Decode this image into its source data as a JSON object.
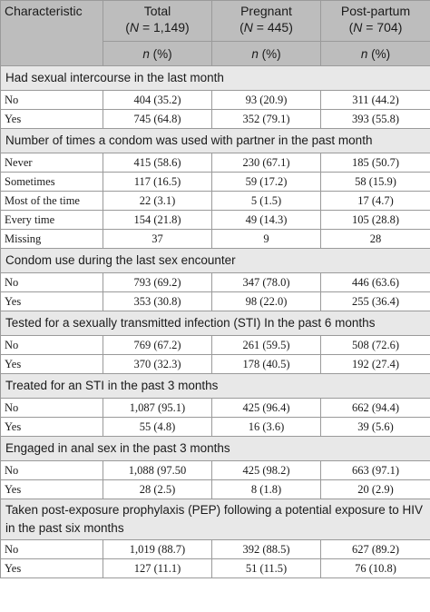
{
  "header": {
    "characteristic": "Characteristic",
    "columns": [
      {
        "title": "Total",
        "n_label": "N",
        "n_value": "= 1,149)"
      },
      {
        "title": "Pregnant",
        "n_label": "N",
        "n_value": "= 445)"
      },
      {
        "title": "Post-partum",
        "n_label": "N",
        "n_value": "= 704)"
      }
    ],
    "unit_n": "n",
    "unit_pct": " (%)"
  },
  "sections": [
    {
      "title": "Had sexual intercourse in the last month",
      "rows": [
        {
          "label": "No",
          "values": [
            "404 (35.2)",
            "93 (20.9)",
            "311 (44.2)"
          ]
        },
        {
          "label": "Yes",
          "values": [
            "745 (64.8)",
            "352 (79.1)",
            "393 (55.8)"
          ]
        }
      ]
    },
    {
      "title": "Number of times a condom was used with partner in the past month",
      "rows": [
        {
          "label": "Never",
          "values": [
            "415 (58.6)",
            "230 (67.1)",
            "185 (50.7)"
          ]
        },
        {
          "label": "Sometimes",
          "values": [
            "117 (16.5)",
            "59 (17.2)",
            "58 (15.9)"
          ]
        },
        {
          "label": "Most of the time",
          "values": [
            "22 (3.1)",
            "5 (1.5)",
            "17 (4.7)"
          ]
        },
        {
          "label": "Every time",
          "values": [
            "154 (21.8)",
            "49 (14.3)",
            "105 (28.8)"
          ]
        },
        {
          "label": "Missing",
          "values": [
            "37",
            "9",
            "28"
          ]
        }
      ]
    },
    {
      "title": "Condom use during the last sex encounter",
      "rows": [
        {
          "label": "No",
          "values": [
            "793 (69.2)",
            "347 (78.0)",
            "446 (63.6)"
          ]
        },
        {
          "label": "Yes",
          "values": [
            "353 (30.8)",
            "98 (22.0)",
            "255 (36.4)"
          ]
        }
      ]
    },
    {
      "title": "Tested for a sexually transmitted infection (STI) In the past 6 months",
      "rows": [
        {
          "label": "No",
          "values": [
            "769 (67.2)",
            "261 (59.5)",
            "508 (72.6)"
          ]
        },
        {
          "label": "Yes",
          "values": [
            "370 (32.3)",
            "178 (40.5)",
            "192 (27.4)"
          ]
        }
      ]
    },
    {
      "title": "Treated for an STI in the past 3 months",
      "rows": [
        {
          "label": "No",
          "values": [
            "1,087 (95.1)",
            "425 (96.4)",
            "662 (94.4)"
          ]
        },
        {
          "label": "Yes",
          "values": [
            "55 (4.8)",
            "16 (3.6)",
            "39 (5.6)"
          ]
        }
      ]
    },
    {
      "title": "Engaged in anal sex in the past 3 months",
      "rows": [
        {
          "label": "No",
          "values": [
            "1,088 (97.50",
            "425 (98.2)",
            "663 (97.1)"
          ]
        },
        {
          "label": "Yes",
          "values": [
            "28 (2.5)",
            "8 (1.8)",
            "20 (2.9)"
          ]
        }
      ]
    },
    {
      "title": "Taken post-exposure prophylaxis (PEP) following a potential exposure to HIV in the past six months",
      "rows": [
        {
          "label": "No",
          "values": [
            "1,019 (88.7)",
            "392 (88.5)",
            "627 (89.2)"
          ]
        },
        {
          "label": "Yes",
          "values": [
            "127 (11.1)",
            "51 (11.5)",
            "76 (10.8)"
          ]
        }
      ]
    }
  ]
}
